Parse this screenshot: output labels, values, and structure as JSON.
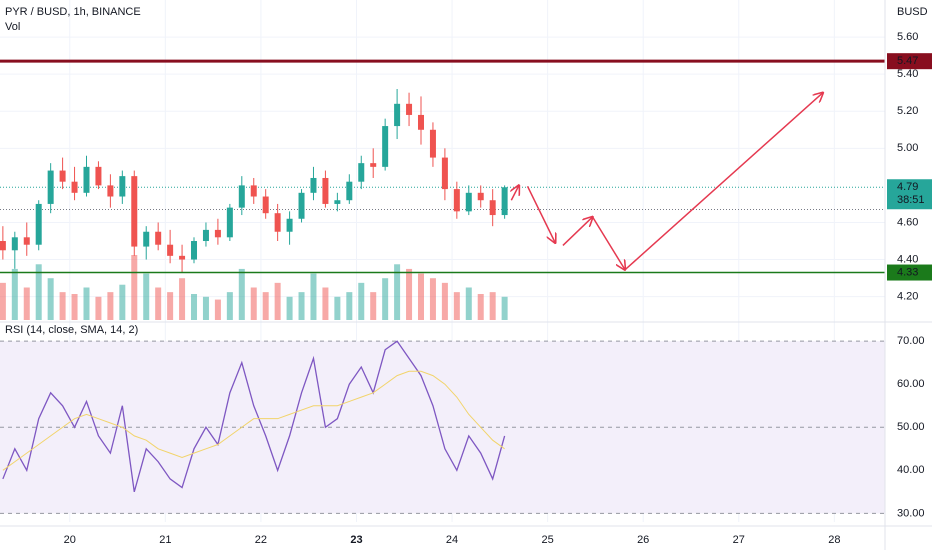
{
  "chart_data": [
    {
      "type": "candlestick",
      "title": "PYR / BUSD, 1h, BINANCE",
      "subtitle": "Vol",
      "axis_label": "BUSD",
      "x": [
        19.3,
        19.425,
        19.55,
        19.675,
        19.8,
        19.925,
        20.05,
        20.175,
        20.3,
        20.425,
        20.55,
        20.675,
        20.8,
        20.925,
        21.05,
        21.175,
        21.3,
        21.425,
        21.55,
        21.675,
        21.8,
        21.925,
        22.05,
        22.175,
        22.3,
        22.425,
        22.55,
        22.675,
        22.8,
        22.925,
        23.05,
        23.175,
        23.3,
        23.425,
        23.55,
        23.675,
        23.8,
        23.925,
        24.05,
        24.175,
        24.3,
        24.425,
        24.55
      ],
      "open": [
        4.5,
        4.45,
        4.52,
        4.48,
        4.7,
        4.88,
        4.82,
        4.76,
        4.9,
        4.8,
        4.74,
        4.85,
        4.47,
        4.55,
        4.48,
        4.42,
        4.4,
        4.5,
        4.56,
        4.52,
        4.68,
        4.8,
        4.74,
        4.65,
        4.55,
        4.62,
        4.76,
        4.84,
        4.7,
        4.72,
        4.82,
        4.92,
        4.9,
        5.12,
        5.24,
        5.18,
        5.1,
        4.95,
        4.78,
        4.66,
        4.76,
        4.72,
        4.64
      ],
      "high": [
        4.58,
        4.55,
        4.6,
        4.72,
        4.92,
        4.95,
        4.9,
        4.96,
        4.93,
        4.86,
        4.88,
        4.88,
        4.58,
        4.6,
        4.56,
        4.48,
        4.52,
        4.6,
        4.62,
        4.7,
        4.85,
        4.84,
        4.78,
        4.7,
        4.66,
        4.78,
        4.9,
        4.88,
        4.76,
        4.86,
        4.96,
        5.0,
        5.16,
        5.32,
        5.3,
        5.28,
        5.14,
        5.0,
        4.82,
        4.8,
        4.8,
        4.78,
        4.8
      ],
      "low": [
        4.4,
        4.35,
        4.42,
        4.45,
        4.65,
        4.78,
        4.72,
        4.74,
        4.78,
        4.68,
        4.7,
        4.42,
        4.4,
        4.45,
        4.38,
        4.33,
        4.38,
        4.47,
        4.48,
        4.5,
        4.64,
        4.7,
        4.62,
        4.5,
        4.48,
        4.6,
        4.72,
        4.68,
        4.66,
        4.7,
        4.78,
        4.84,
        4.88,
        5.05,
        5.12,
        5.02,
        4.9,
        4.72,
        4.62,
        4.64,
        4.68,
        4.58,
        4.62
      ],
      "close": [
        4.45,
        4.52,
        4.48,
        4.7,
        4.88,
        4.82,
        4.76,
        4.9,
        4.8,
        4.74,
        4.85,
        4.47,
        4.55,
        4.48,
        4.42,
        4.4,
        4.5,
        4.56,
        4.52,
        4.68,
        4.8,
        4.74,
        4.65,
        4.55,
        4.62,
        4.76,
        4.84,
        4.7,
        4.72,
        4.82,
        4.92,
        4.9,
        5.12,
        5.24,
        5.18,
        5.1,
        4.95,
        4.78,
        4.66,
        4.76,
        4.72,
        4.64,
        4.79
      ],
      "volume": [
        40,
        55,
        35,
        60,
        45,
        30,
        28,
        35,
        25,
        30,
        38,
        70,
        50,
        35,
        30,
        45,
        28,
        25,
        22,
        30,
        55,
        35,
        30,
        40,
        25,
        30,
        50,
        35,
        25,
        30,
        40,
        30,
        45,
        60,
        55,
        50,
        45,
        40,
        30,
        35,
        28,
        30,
        25
      ],
      "up_color": "#26a69a",
      "down_color": "#ef5350",
      "xlim": [
        19.27,
        28.53
      ],
      "xticks": [
        20,
        21,
        22,
        23,
        24,
        25,
        26,
        27,
        28
      ],
      "bold_xtick": 23,
      "ylim": [
        4.02,
        5.8
      ],
      "yticks": [
        {
          "value": 4.2,
          "label": "4.20"
        },
        {
          "value": 4.4,
          "label": "4.40"
        },
        {
          "value": 4.6,
          "label": "4.60"
        },
        {
          "value": 5,
          "label": "5.00"
        },
        {
          "value": 5.2,
          "label": "5.20"
        },
        {
          "value": 5.4,
          "label": "5.40"
        },
        {
          "value": 5.6,
          "label": "5.60"
        }
      ],
      "levels": [
        {
          "value": 5.47,
          "color": "#880e1f"
        },
        {
          "value": 4.33,
          "color": "#1b7a1b"
        }
      ],
      "last": {
        "value": 4.79,
        "countdown": "38:51",
        "color": "#26a69a"
      },
      "reference_line": 4.67,
      "projection": {
        "color": "#e53950",
        "segments": [
          {
            "x": [
              24.62,
              24.7
            ],
            "y": [
              4.72,
              4.8
            ]
          },
          {
            "x": [
              24.79,
              25.08
            ],
            "y": [
              4.795,
              4.49
            ]
          },
          {
            "x": [
              25.16,
              25.47
            ],
            "y": [
              4.476,
              4.63
            ]
          },
          {
            "x": [
              25.47,
              25.81
            ],
            "y": [
              4.63,
              4.345
            ]
          },
          {
            "x": [
              25.81,
              27.88
            ],
            "y": [
              4.345,
              5.3
            ]
          }
        ]
      }
    },
    {
      "type": "line",
      "title": "RSI (14, close, SMA, 14, 2)",
      "x": [
        19.3,
        19.425,
        19.55,
        19.675,
        19.8,
        19.925,
        20.05,
        20.175,
        20.3,
        20.425,
        20.55,
        20.675,
        20.8,
        20.925,
        21.05,
        21.175,
        21.3,
        21.425,
        21.55,
        21.675,
        21.8,
        21.925,
        22.05,
        22.175,
        22.3,
        22.425,
        22.55,
        22.675,
        22.8,
        22.925,
        23.05,
        23.175,
        23.3,
        23.425,
        23.55,
        23.675,
        23.8,
        23.925,
        24.05,
        24.175,
        24.3,
        24.425,
        24.55
      ],
      "series": [
        {
          "color": "#7e57c2",
          "values": [
            38,
            45,
            40,
            52,
            58,
            55,
            50,
            56,
            48,
            44,
            55,
            35,
            45,
            42,
            38,
            36,
            45,
            50,
            46,
            58,
            65,
            55,
            48,
            40,
            48,
            58,
            66,
            50,
            52,
            60,
            64,
            58,
            68,
            70,
            66,
            62,
            55,
            45,
            40,
            48,
            44,
            38,
            48
          ]
        },
        {
          "color": "#f2d46b",
          "values": [
            40,
            42,
            44,
            46,
            48,
            50,
            52,
            53,
            52,
            51,
            50,
            48,
            47,
            45,
            44,
            43,
            44,
            45,
            46,
            48,
            50,
            52,
            52,
            52,
            53,
            54,
            55,
            55,
            55,
            56,
            57,
            58,
            60,
            62,
            63,
            63,
            62,
            60,
            57,
            53,
            50,
            47,
            45
          ]
        }
      ],
      "band_color": "#f3effa",
      "ylim": [
        28,
        71.2
      ],
      "yticks": [
        {
          "value": 30,
          "label": "30.00"
        },
        {
          "value": 40,
          "label": "40.00"
        },
        {
          "value": 50,
          "label": "50.00"
        },
        {
          "value": 60,
          "label": "60.00"
        },
        {
          "value": 70,
          "label": "70.00"
        }
      ],
      "dashed_ticks": [
        30,
        50,
        70
      ]
    }
  ]
}
